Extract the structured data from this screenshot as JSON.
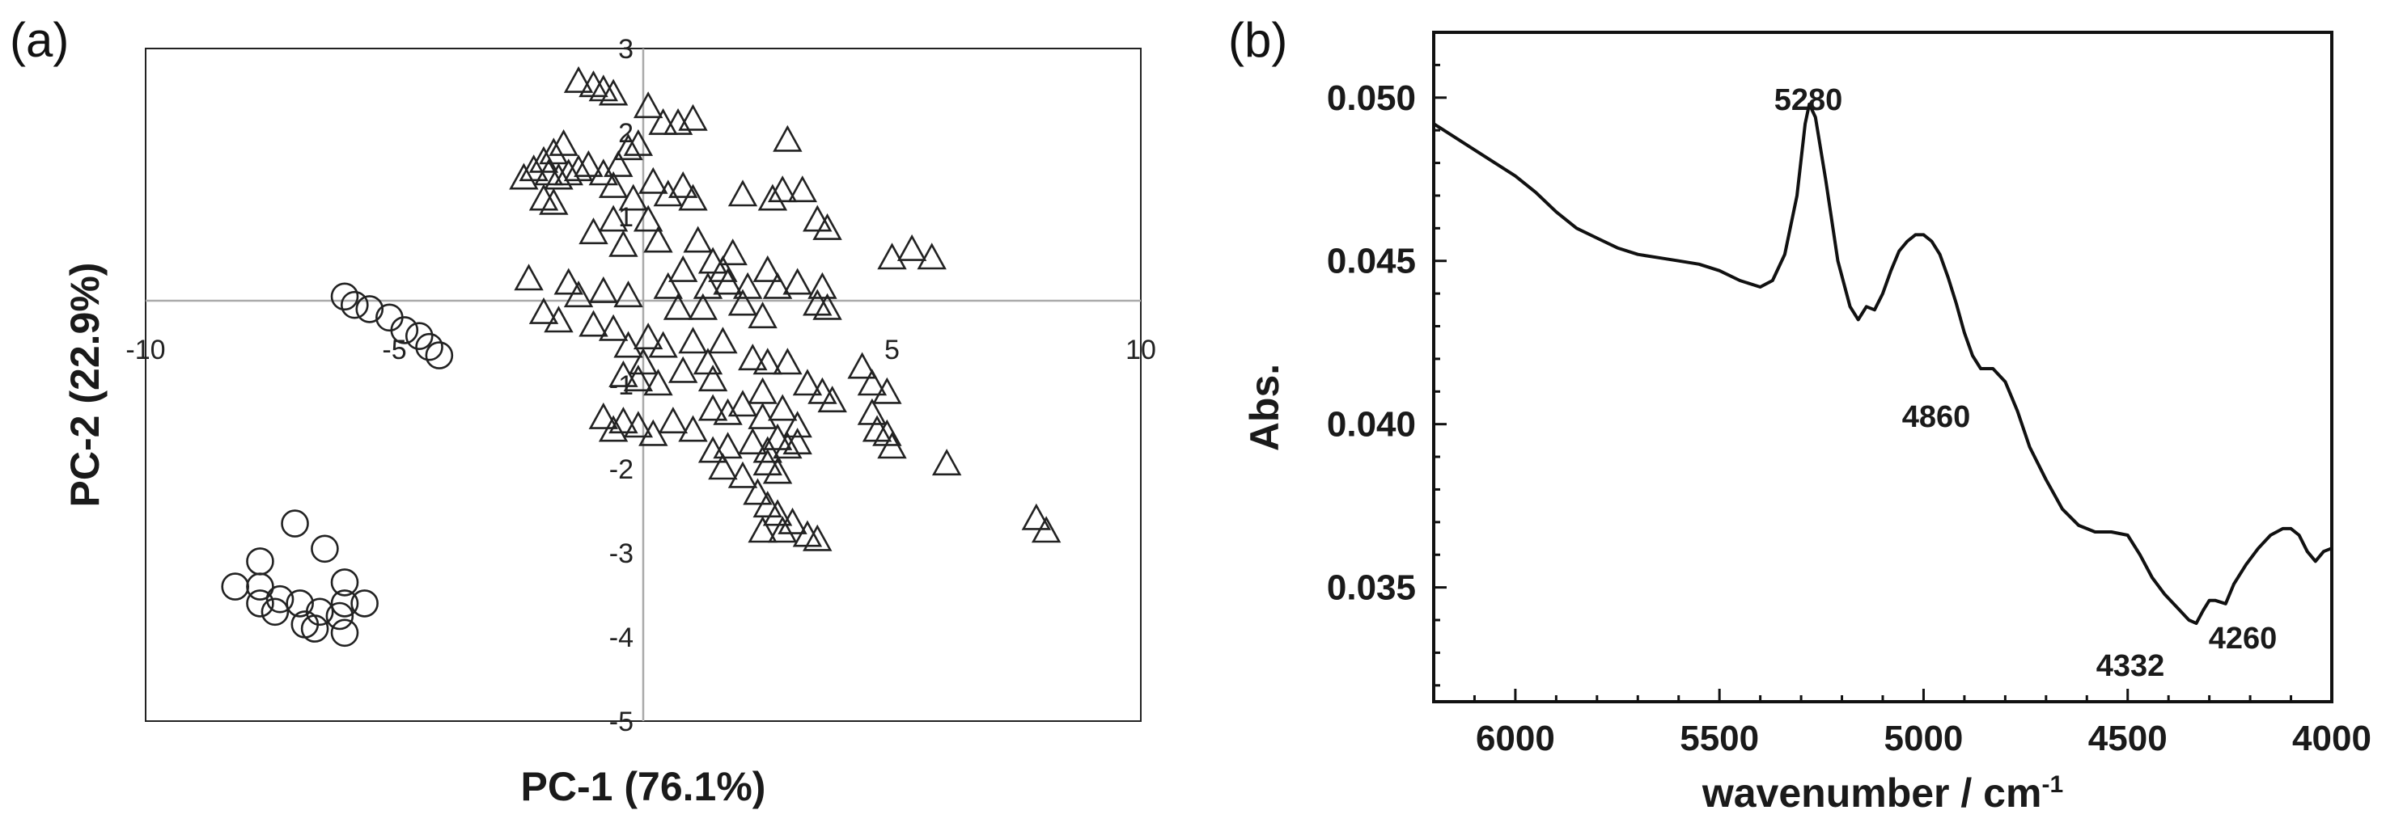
{
  "chart_data": [
    {
      "type": "scatter",
      "panel_label": "(a)",
      "xlabel": "PC-1 (76.1%)",
      "ylabel": "PC-2 (22.9%)",
      "xlim": [
        -10,
        10
      ],
      "ylim": [
        -5,
        3
      ],
      "x_ticks": [
        "-10",
        "-5",
        "5",
        "10"
      ],
      "x_tick_values": [
        -10,
        -5,
        5,
        10
      ],
      "y_ticks": [
        "3",
        "2",
        "1",
        "-1",
        "-2",
        "-3",
        "-4",
        "-5"
      ],
      "y_tick_values": [
        3,
        2,
        1,
        -1,
        -2,
        -3,
        -4,
        -5
      ],
      "zero_lines": true,
      "series": [
        {
          "marker": "circle",
          "points": [
            [
              -6.0,
              0.05
            ],
            [
              -5.8,
              -0.05
            ],
            [
              -5.5,
              -0.1
            ],
            [
              -5.1,
              -0.2
            ],
            [
              -4.8,
              -0.35
            ],
            [
              -4.5,
              -0.42
            ],
            [
              -4.3,
              -0.55
            ],
            [
              -4.1,
              -0.65
            ],
            [
              -7.0,
              -2.65
            ],
            [
              -6.4,
              -2.95
            ],
            [
              -7.7,
              -3.1
            ],
            [
              -8.2,
              -3.4
            ],
            [
              -7.7,
              -3.4
            ],
            [
              -6.0,
              -3.35
            ],
            [
              -7.3,
              -3.55
            ],
            [
              -6.9,
              -3.6
            ],
            [
              -7.7,
              -3.6
            ],
            [
              -7.4,
              -3.7
            ],
            [
              -6.5,
              -3.7
            ],
            [
              -6.0,
              -3.6
            ],
            [
              -5.6,
              -3.6
            ],
            [
              -6.1,
              -3.75
            ],
            [
              -6.8,
              -3.85
            ],
            [
              -6.6,
              -3.9
            ],
            [
              -6.0,
              -3.95
            ]
          ]
        },
        {
          "marker": "triangle",
          "points": [
            [
              -1.3,
              2.6
            ],
            [
              -1.0,
              2.55
            ],
            [
              -0.8,
              2.5
            ],
            [
              -0.6,
              2.45
            ],
            [
              0.1,
              2.3
            ],
            [
              0.4,
              2.1
            ],
            [
              0.7,
              2.1
            ],
            [
              1.0,
              2.15
            ],
            [
              -0.3,
              1.8
            ],
            [
              -0.1,
              1.85
            ],
            [
              2.9,
              1.9
            ],
            [
              -2.4,
              1.45
            ],
            [
              -2.2,
              1.55
            ],
            [
              -2.0,
              1.65
            ],
            [
              -1.8,
              1.75
            ],
            [
              -1.6,
              1.85
            ],
            [
              -1.9,
              1.5
            ],
            [
              -1.7,
              1.45
            ],
            [
              -2.0,
              1.2
            ],
            [
              -1.8,
              1.15
            ],
            [
              -1.5,
              1.5
            ],
            [
              -1.3,
              1.55
            ],
            [
              -1.1,
              1.6
            ],
            [
              -0.8,
              1.5
            ],
            [
              -0.5,
              1.6
            ],
            [
              -0.6,
              1.35
            ],
            [
              -0.2,
              1.2
            ],
            [
              0.2,
              1.4
            ],
            [
              0.5,
              1.25
            ],
            [
              0.8,
              1.35
            ],
            [
              1.0,
              1.2
            ],
            [
              2.0,
              1.25
            ],
            [
              2.6,
              1.2
            ],
            [
              2.8,
              1.3
            ],
            [
              3.2,
              1.3
            ],
            [
              -0.6,
              0.95
            ],
            [
              -1.0,
              0.8
            ],
            [
              -0.4,
              0.65
            ],
            [
              0.1,
              0.95
            ],
            [
              0.3,
              0.7
            ],
            [
              1.1,
              0.7
            ],
            [
              1.4,
              0.45
            ],
            [
              1.6,
              0.35
            ],
            [
              1.8,
              0.55
            ],
            [
              1.3,
              0.15
            ],
            [
              1.7,
              0.2
            ],
            [
              2.1,
              0.15
            ],
            [
              2.5,
              0.35
            ],
            [
              2.7,
              0.15
            ],
            [
              3.1,
              0.2
            ],
            [
              3.5,
              0.95
            ],
            [
              3.7,
              0.85
            ],
            [
              3.6,
              0.15
            ],
            [
              5.0,
              0.5
            ],
            [
              5.4,
              0.6
            ],
            [
              5.8,
              0.5
            ],
            [
              0.8,
              0.35
            ],
            [
              0.5,
              0.15
            ],
            [
              -2.3,
              0.25
            ],
            [
              -1.5,
              0.2
            ],
            [
              -1.3,
              0.05
            ],
            [
              -0.8,
              0.1
            ],
            [
              -0.3,
              0.05
            ],
            [
              0.7,
              -0.1
            ],
            [
              1.2,
              -0.1
            ],
            [
              2.0,
              -0.05
            ],
            [
              2.4,
              -0.2
            ],
            [
              3.5,
              -0.05
            ],
            [
              3.7,
              -0.1
            ],
            [
              -2.0,
              -0.15
            ],
            [
              -1.7,
              -0.25
            ],
            [
              -1.0,
              -0.3
            ],
            [
              -0.6,
              -0.35
            ],
            [
              -0.3,
              -0.55
            ],
            [
              0.1,
              -0.45
            ],
            [
              0.4,
              -0.55
            ],
            [
              1.0,
              -0.5
            ],
            [
              1.3,
              -0.75
            ],
            [
              1.6,
              -0.5
            ],
            [
              2.2,
              -0.7
            ],
            [
              2.5,
              -0.75
            ],
            [
              2.9,
              -0.75
            ],
            [
              0.0,
              -0.75
            ],
            [
              -0.1,
              -0.95
            ],
            [
              -0.4,
              -0.9
            ],
            [
              0.3,
              -1.0
            ],
            [
              0.8,
              -0.85
            ],
            [
              1.4,
              -0.95
            ],
            [
              2.4,
              -1.1
            ],
            [
              3.3,
              -1.0
            ],
            [
              3.6,
              -1.1
            ],
            [
              3.8,
              -1.2
            ],
            [
              4.4,
              -0.8
            ],
            [
              4.6,
              -1.0
            ],
            [
              4.9,
              -1.1
            ],
            [
              4.6,
              -1.35
            ],
            [
              4.7,
              -1.55
            ],
            [
              4.9,
              -1.6
            ],
            [
              5.0,
              -1.75
            ],
            [
              6.1,
              -1.95
            ],
            [
              -0.8,
              -1.4
            ],
            [
              -0.6,
              -1.55
            ],
            [
              -0.4,
              -1.45
            ],
            [
              -0.1,
              -1.5
            ],
            [
              0.2,
              -1.6
            ],
            [
              0.6,
              -1.45
            ],
            [
              1.0,
              -1.55
            ],
            [
              1.4,
              -1.3
            ],
            [
              1.7,
              -1.35
            ],
            [
              2.0,
              -1.25
            ],
            [
              2.4,
              -1.4
            ],
            [
              2.8,
              -1.3
            ],
            [
              3.1,
              -1.5
            ],
            [
              1.4,
              -1.8
            ],
            [
              1.7,
              -1.75
            ],
            [
              2.2,
              -1.7
            ],
            [
              2.5,
              -1.8
            ],
            [
              2.7,
              -1.65
            ],
            [
              2.9,
              -1.75
            ],
            [
              3.1,
              -1.7
            ],
            [
              1.6,
              -2.0
            ],
            [
              2.0,
              -2.1
            ],
            [
              2.5,
              -1.95
            ],
            [
              2.7,
              -2.05
            ],
            [
              2.3,
              -2.3
            ],
            [
              2.5,
              -2.45
            ],
            [
              2.7,
              -2.55
            ],
            [
              2.4,
              -2.75
            ],
            [
              2.8,
              -2.75
            ],
            [
              3.0,
              -2.65
            ],
            [
              3.3,
              -2.8
            ],
            [
              3.5,
              -2.85
            ],
            [
              7.9,
              -2.6
            ],
            [
              8.1,
              -2.75
            ]
          ]
        }
      ]
    },
    {
      "type": "line",
      "panel_label": "(b)",
      "xlabel": "wavenumber / cm",
      "xlabel_sup": "-1",
      "ylabel": "Abs.",
      "xlim": [
        6200,
        4000
      ],
      "ylim": [
        0.0315,
        0.052
      ],
      "x_ticks": [
        "6000",
        "5500",
        "5000",
        "4500",
        "4000"
      ],
      "x_tick_values": [
        6000,
        5500,
        5000,
        4500,
        4000
      ],
      "y_ticks": [
        "0.050",
        "0.045",
        "0.040",
        "0.035"
      ],
      "y_tick_values": [
        0.05,
        0.045,
        0.04,
        0.035
      ],
      "series": [
        {
          "points": [
            [
              6200,
              0.0492
            ],
            [
              6150,
              0.0488
            ],
            [
              6100,
              0.0484
            ],
            [
              6050,
              0.048
            ],
            [
              6000,
              0.0476
            ],
            [
              5950,
              0.0471
            ],
            [
              5900,
              0.0465
            ],
            [
              5850,
              0.046
            ],
            [
              5800,
              0.0457
            ],
            [
              5750,
              0.0454
            ],
            [
              5700,
              0.0452
            ],
            [
              5650,
              0.0451
            ],
            [
              5600,
              0.045
            ],
            [
              5550,
              0.0449
            ],
            [
              5500,
              0.0447
            ],
            [
              5450,
              0.0444
            ],
            [
              5400,
              0.0442
            ],
            [
              5370,
              0.0444
            ],
            [
              5340,
              0.0452
            ],
            [
              5310,
              0.047
            ],
            [
              5290,
              0.0492
            ],
            [
              5280,
              0.0498
            ],
            [
              5265,
              0.0494
            ],
            [
              5240,
              0.0475
            ],
            [
              5210,
              0.045
            ],
            [
              5180,
              0.0436
            ],
            [
              5160,
              0.0432
            ],
            [
              5140,
              0.0436
            ],
            [
              5120,
              0.0435
            ],
            [
              5100,
              0.044
            ],
            [
              5080,
              0.0447
            ],
            [
              5060,
              0.0453
            ],
            [
              5040,
              0.0456
            ],
            [
              5020,
              0.0458
            ],
            [
              5000,
              0.0458
            ],
            [
              4980,
              0.0456
            ],
            [
              4960,
              0.0452
            ],
            [
              4940,
              0.0445
            ],
            [
              4920,
              0.0437
            ],
            [
              4900,
              0.0428
            ],
            [
              4880,
              0.0421
            ],
            [
              4860,
              0.0417
            ],
            [
              4830,
              0.0417
            ],
            [
              4800,
              0.0413
            ],
            [
              4770,
              0.0404
            ],
            [
              4740,
              0.0393
            ],
            [
              4700,
              0.0383
            ],
            [
              4660,
              0.0374
            ],
            [
              4620,
              0.0369
            ],
            [
              4580,
              0.0367
            ],
            [
              4540,
              0.0367
            ],
            [
              4500,
              0.0366
            ],
            [
              4470,
              0.036
            ],
            [
              4440,
              0.0353
            ],
            [
              4410,
              0.0348
            ],
            [
              4380,
              0.0344
            ],
            [
              4350,
              0.034
            ],
            [
              4332,
              0.0339
            ],
            [
              4315,
              0.0343
            ],
            [
              4300,
              0.0346
            ],
            [
              4285,
              0.0346
            ],
            [
              4260,
              0.0345
            ],
            [
              4240,
              0.0351
            ],
            [
              4210,
              0.0357
            ],
            [
              4180,
              0.0362
            ],
            [
              4150,
              0.0366
            ],
            [
              4120,
              0.0368
            ],
            [
              4100,
              0.0368
            ],
            [
              4080,
              0.0366
            ],
            [
              4060,
              0.0361
            ],
            [
              4040,
              0.0358
            ],
            [
              4020,
              0.0361
            ],
            [
              4000,
              0.0362
            ]
          ]
        }
      ],
      "annotations": [
        {
          "text": "5280",
          "x": 5280,
          "y": 0.0498
        },
        {
          "text": "4860",
          "x": 4860,
          "y": 0.0417
        },
        {
          "text": "4332",
          "x": 4332,
          "y": 0.0339
        },
        {
          "text": "4260",
          "x": 4260,
          "y": 0.0345
        }
      ]
    }
  ]
}
